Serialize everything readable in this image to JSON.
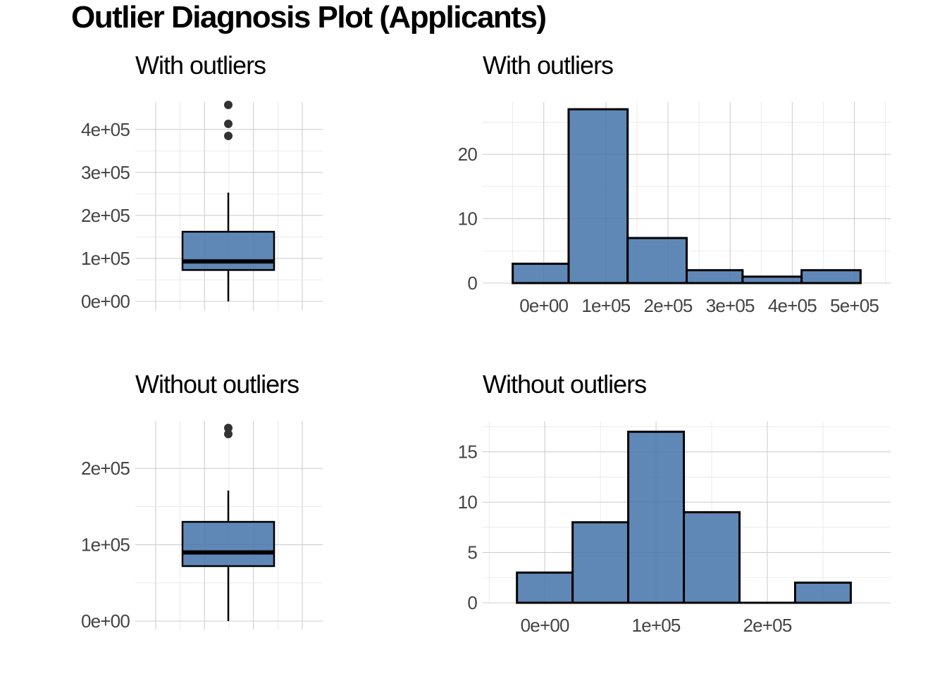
{
  "title": "Outlier Diagnosis Plot (Applicants)",
  "colors": {
    "fill": "#4a78ad",
    "outline": "#000000",
    "outlier": "#333333",
    "grid": "#cfcfcf"
  },
  "chart_data": [
    {
      "id": "box-with",
      "type": "box",
      "title": "With outliers",
      "ylim": [
        0,
        475000
      ],
      "yticks": [
        0,
        100000,
        200000,
        300000,
        400000
      ],
      "ytick_labels": [
        "0e+00",
        "1e+05",
        "2e+05",
        "3e+05",
        "4e+05"
      ],
      "box": {
        "q1": 73000,
        "median": 93000,
        "q3": 162000,
        "whisker_low": 0,
        "whisker_high": 253000
      },
      "outliers": [
        385000,
        413000,
        457000
      ]
    },
    {
      "id": "hist-with",
      "type": "bar",
      "title": "With outliers",
      "bins": [
        {
          "x0": -50000,
          "x1": 40000,
          "count": 3
        },
        {
          "x0": 40000,
          "x1": 135000,
          "count": 27
        },
        {
          "x0": 135000,
          "x1": 230000,
          "count": 7
        },
        {
          "x0": 230000,
          "x1": 320000,
          "count": 2
        },
        {
          "x0": 320000,
          "x1": 415000,
          "count": 1
        },
        {
          "x0": 415000,
          "x1": 510000,
          "count": 2
        }
      ],
      "xlim": [
        -70000,
        530000
      ],
      "ylim": [
        0,
        28
      ],
      "xticks": [
        0,
        100000,
        200000,
        300000,
        400000,
        500000
      ],
      "xtick_labels": [
        "0e+00",
        "1e+05",
        "2e+05",
        "3e+05",
        "4e+05",
        "5e+05"
      ],
      "yticks": [
        0,
        10,
        20
      ],
      "ytick_labels": [
        "0",
        "10",
        "20"
      ]
    },
    {
      "id": "box-without",
      "type": "box",
      "title": "Without outliers",
      "ylim": [
        0,
        262000
      ],
      "yticks": [
        0,
        100000,
        200000
      ],
      "ytick_labels": [
        "0e+00",
        "1e+05",
        "2e+05"
      ],
      "box": {
        "q1": 72000,
        "median": 90000,
        "q3": 130000,
        "whisker_low": 0,
        "whisker_high": 171000
      },
      "outliers": [
        245000,
        253000
      ]
    },
    {
      "id": "hist-without",
      "type": "bar",
      "title": "Without outliers",
      "bins": [
        {
          "x0": -25000,
          "x1": 25000,
          "count": 3
        },
        {
          "x0": 25000,
          "x1": 75000,
          "count": 8
        },
        {
          "x0": 75000,
          "x1": 125000,
          "count": 17
        },
        {
          "x0": 125000,
          "x1": 175000,
          "count": 9
        },
        {
          "x0": 175000,
          "x1": 225000,
          "count": 0
        },
        {
          "x0": 225000,
          "x1": 275000,
          "count": 2
        }
      ],
      "xlim": [
        -40000,
        295000
      ],
      "ylim": [
        0,
        17.5
      ],
      "xticks": [
        0,
        100000,
        200000
      ],
      "xtick_labels": [
        "0e+00",
        "1e+05",
        "2e+05"
      ],
      "yticks": [
        0,
        5,
        10,
        15
      ],
      "ytick_labels": [
        "0",
        "5",
        "10",
        "15"
      ]
    }
  ]
}
